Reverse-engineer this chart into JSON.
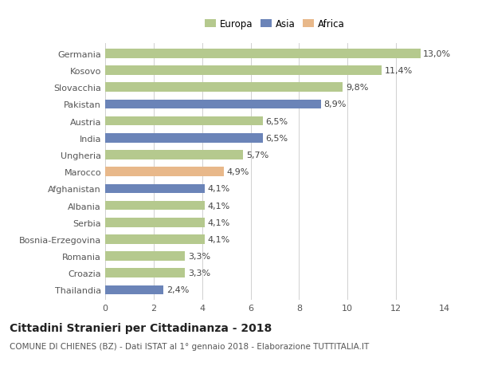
{
  "categories": [
    "Germania",
    "Kosovo",
    "Slovacchia",
    "Pakistan",
    "Austria",
    "India",
    "Ungheria",
    "Marocco",
    "Afghanistan",
    "Albania",
    "Serbia",
    "Bosnia-Erzegovina",
    "Romania",
    "Croazia",
    "Thailandia"
  ],
  "values": [
    13.0,
    11.4,
    9.8,
    8.9,
    6.5,
    6.5,
    5.7,
    4.9,
    4.1,
    4.1,
    4.1,
    4.1,
    3.3,
    3.3,
    2.4
  ],
  "labels": [
    "13,0%",
    "11,4%",
    "9,8%",
    "8,9%",
    "6,5%",
    "6,5%",
    "5,7%",
    "4,9%",
    "4,1%",
    "4,1%",
    "4,1%",
    "4,1%",
    "3,3%",
    "3,3%",
    "2,4%"
  ],
  "continents": [
    "Europa",
    "Europa",
    "Europa",
    "Asia",
    "Europa",
    "Asia",
    "Europa",
    "Africa",
    "Asia",
    "Europa",
    "Europa",
    "Europa",
    "Europa",
    "Europa",
    "Asia"
  ],
  "colors": {
    "Europa": "#b5c98e",
    "Asia": "#6b84b8",
    "Africa": "#e8b88a"
  },
  "xlim": [
    0,
    14
  ],
  "xticks": [
    0,
    2,
    4,
    6,
    8,
    10,
    12,
    14
  ],
  "title": "Cittadini Stranieri per Cittadinanza - 2018",
  "subtitle": "COMUNE DI CHIENES (BZ) - Dati ISTAT al 1° gennaio 2018 - Elaborazione TUTTITALIA.IT",
  "background_color": "#ffffff",
  "grid_color": "#d0d0d0",
  "bar_height": 0.55,
  "label_fontsize": 8,
  "tick_fontsize": 8,
  "title_fontsize": 10,
  "subtitle_fontsize": 7.5
}
